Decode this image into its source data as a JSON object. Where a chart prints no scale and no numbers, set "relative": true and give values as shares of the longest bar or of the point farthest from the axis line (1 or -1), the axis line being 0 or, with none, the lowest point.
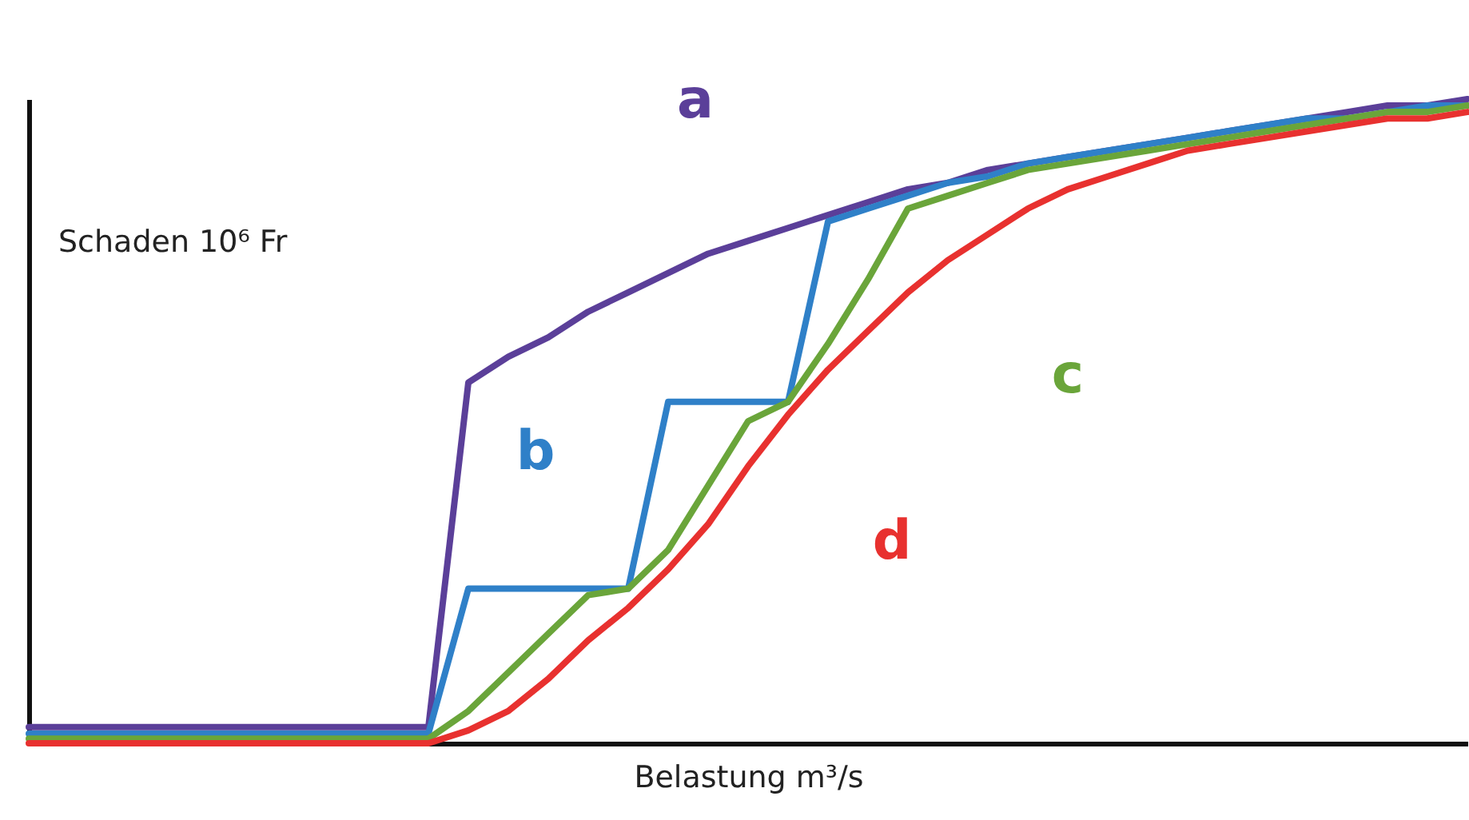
{
  "chart_data": {
    "type": "line",
    "relative": true,
    "xlabel": "Belastung m³/s",
    "ylabel": "Schaden 10⁶ Fr",
    "categories": [
      null,
      null,
      null,
      null,
      null,
      null,
      null,
      null,
      null,
      null,
      null,
      null,
      null,
      null,
      null,
      null,
      null,
      null,
      null,
      null,
      null,
      null,
      null,
      null,
      null,
      null,
      null,
      null,
      null,
      null,
      null,
      null,
      null,
      null,
      null,
      null,
      null
    ],
    "series": [
      {
        "name": "a",
        "color": "#5b3f99",
        "values": [
          0.025,
          0.025,
          0.025,
          0.025,
          0.025,
          0.025,
          0.025,
          0.025,
          0.025,
          0.025,
          0.025,
          0.56,
          0.6,
          0.63,
          0.67,
          0.7,
          0.73,
          0.76,
          0.78,
          0.8,
          0.82,
          0.84,
          0.86,
          0.87,
          0.89,
          0.9,
          0.91,
          0.92,
          0.93,
          0.94,
          0.95,
          0.96,
          0.97,
          0.98,
          0.99,
          0.99,
          1
        ]
      },
      {
        "name": "b",
        "color": "#2f80c8",
        "values": [
          0.015,
          0.015,
          0.015,
          0.015,
          0.015,
          0.015,
          0.015,
          0.015,
          0.015,
          0.015,
          0.015,
          0.24,
          0.24,
          0.24,
          0.24,
          0.24,
          0.53,
          0.53,
          0.53,
          0.53,
          0.81,
          0.83,
          0.85,
          0.87,
          0.88,
          0.9,
          0.91,
          0.92,
          0.93,
          0.94,
          0.95,
          0.96,
          0.97,
          0.97,
          0.98,
          0.99,
          0.99
        ]
      },
      {
        "name": "c",
        "color": "#6aa53a",
        "values": [
          0.007,
          0.007,
          0.007,
          0.007,
          0.007,
          0.007,
          0.007,
          0.007,
          0.007,
          0.007,
          0.007,
          0.05,
          0.11,
          0.17,
          0.23,
          0.24,
          0.3,
          0.4,
          0.5,
          0.53,
          0.62,
          0.72,
          0.83,
          0.85,
          0.87,
          0.89,
          0.9,
          0.91,
          0.92,
          0.93,
          0.94,
          0.95,
          0.96,
          0.97,
          0.98,
          0.98,
          0.99
        ]
      },
      {
        "name": "d",
        "color": "#e8312f",
        "values": [
          0,
          0,
          0,
          0,
          0,
          0,
          0,
          0,
          0,
          0,
          0,
          0.02,
          0.05,
          0.1,
          0.16,
          0.21,
          0.27,
          0.34,
          0.43,
          0.51,
          0.58,
          0.64,
          0.7,
          0.75,
          0.79,
          0.83,
          0.86,
          0.88,
          0.9,
          0.92,
          0.93,
          0.94,
          0.95,
          0.96,
          0.97,
          0.97,
          0.98
        ]
      }
    ],
    "line_style": "solid"
  }
}
